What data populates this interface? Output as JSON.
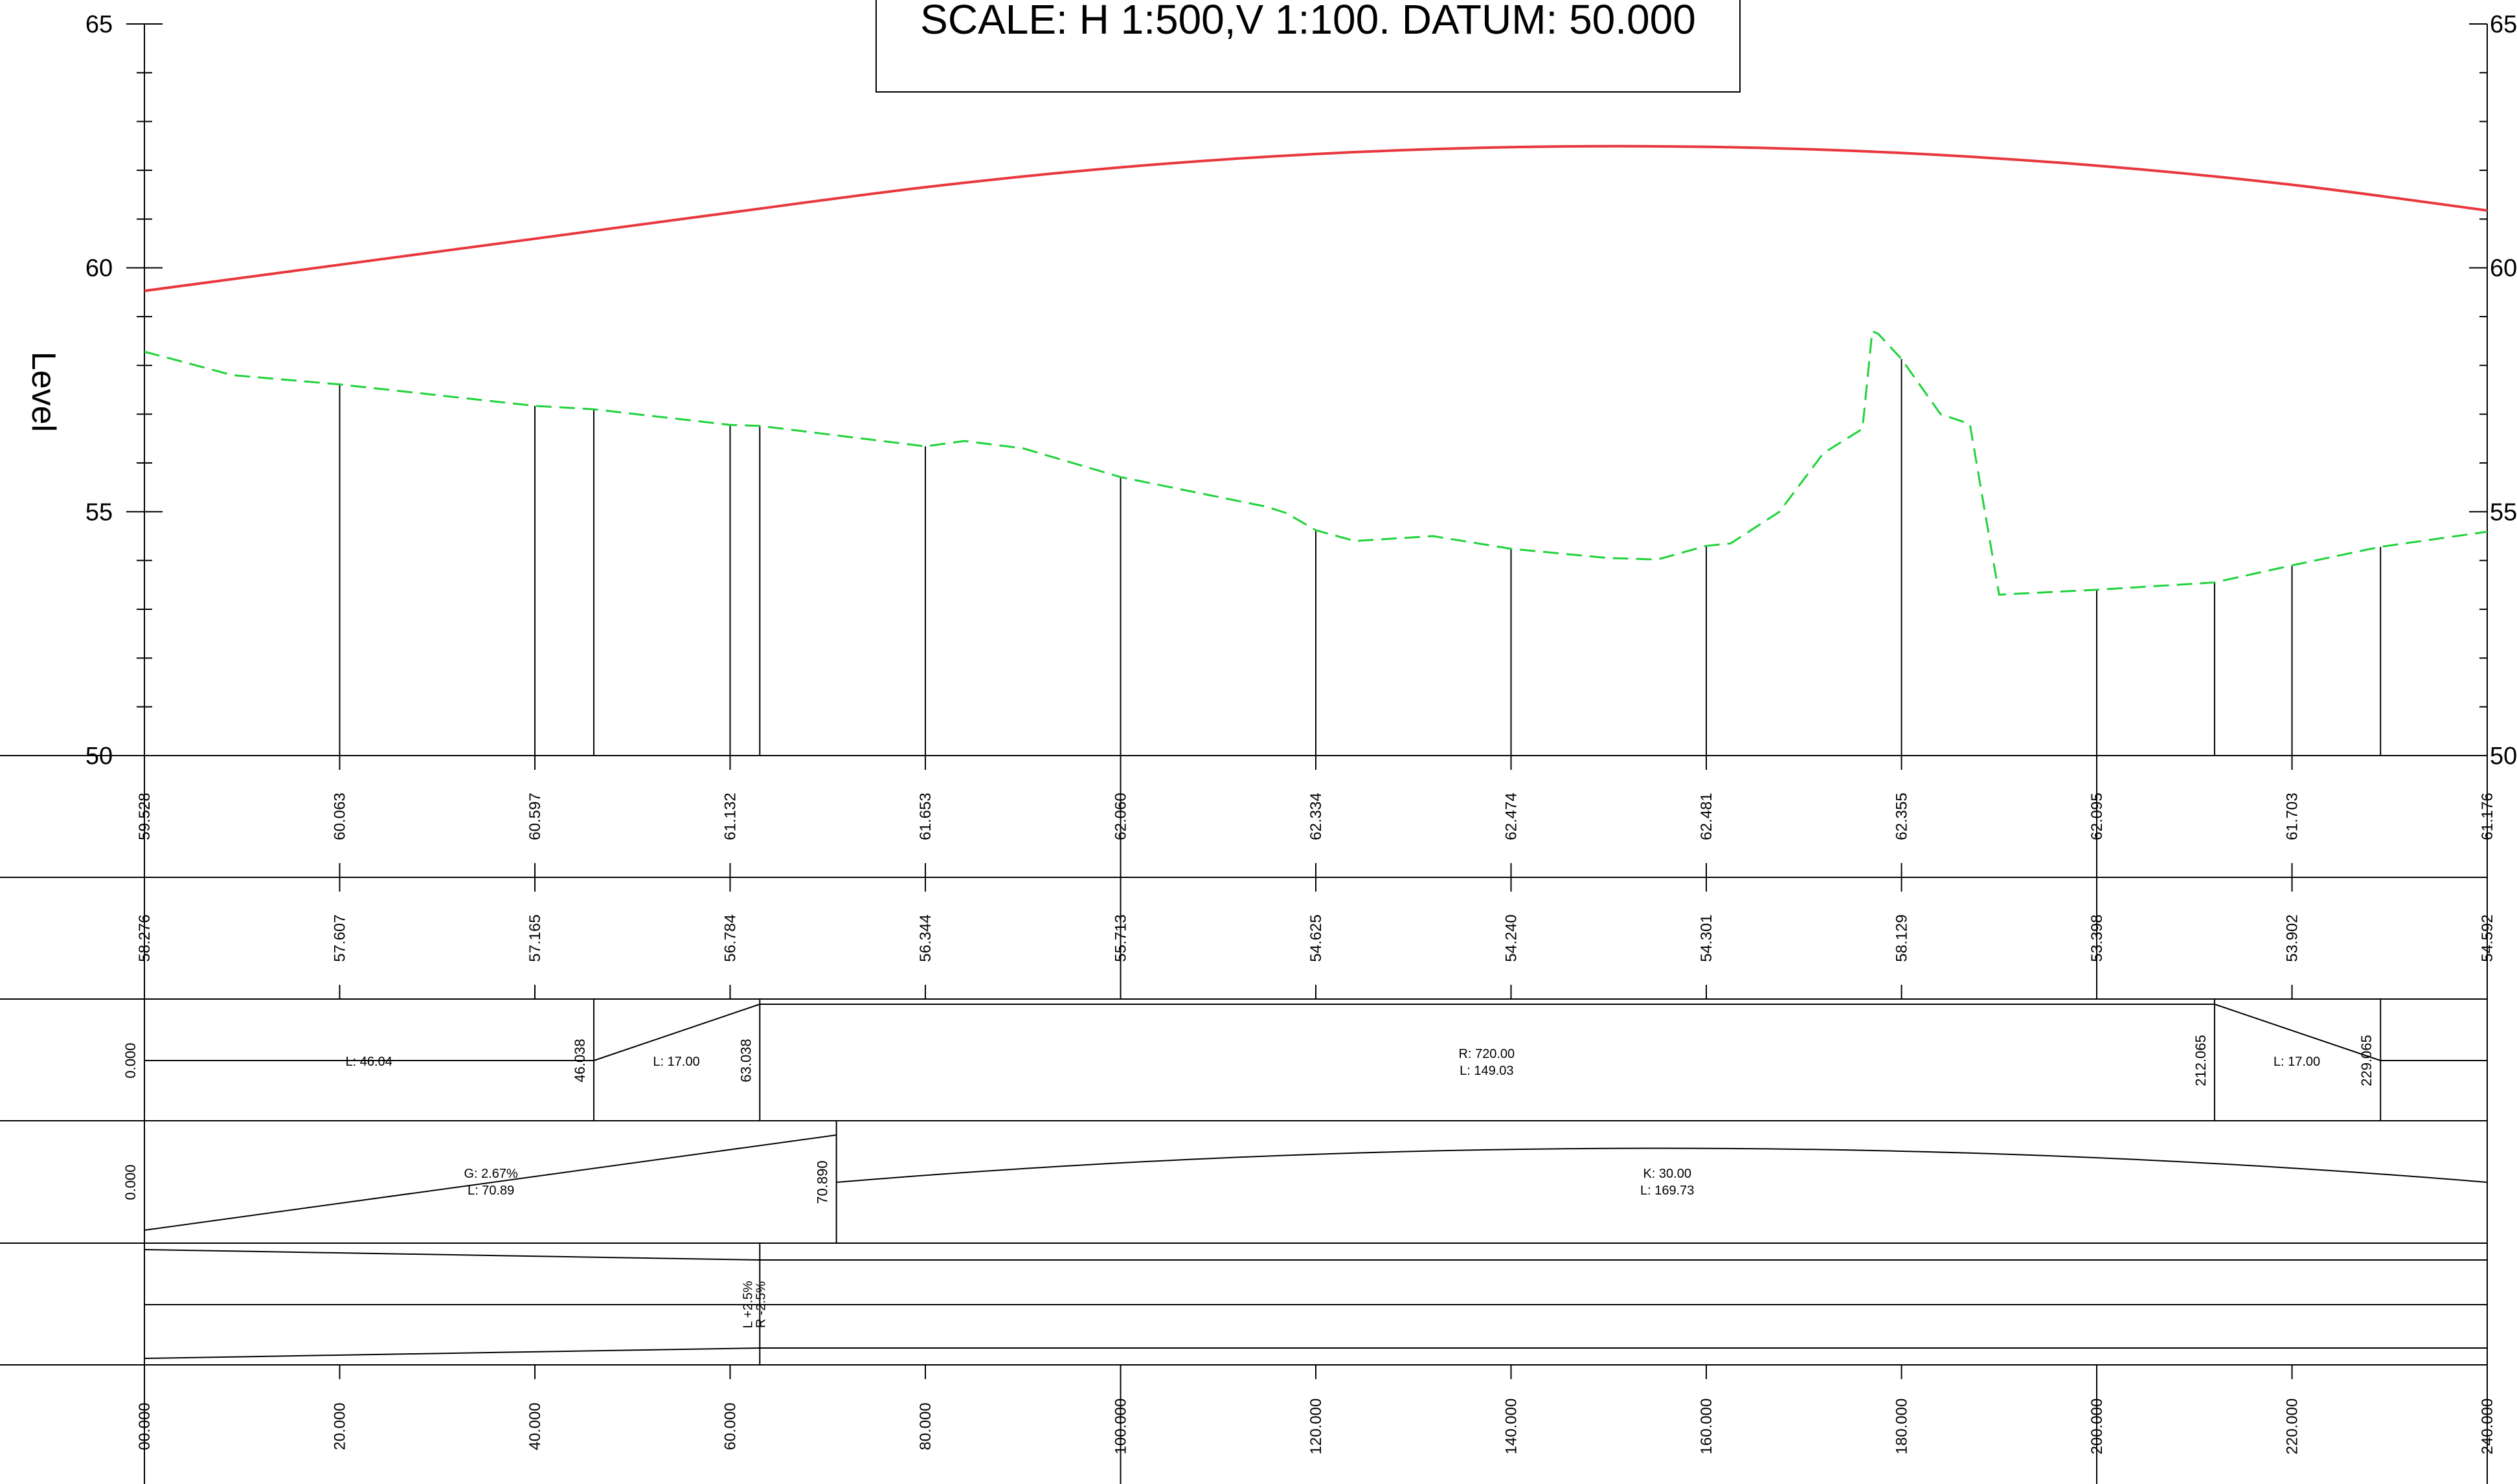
{
  "title": "SCALE: H 1:500,V 1:100. DATUM: 50.000",
  "axis": {
    "label": "Level",
    "ticks": [
      "65",
      "60",
      "55",
      "50"
    ]
  },
  "colors": {
    "design_line": "#e8373d",
    "ground_line": "#1fd33a",
    "ink": "#000000"
  },
  "chart_data": {
    "type": "line",
    "xlabel": "",
    "ylabel": "Level",
    "xlim": [
      0,
      240
    ],
    "ylim": [
      50,
      65
    ],
    "datum": 50.0,
    "grid": false,
    "series": [
      {
        "key": "design",
        "x": [
          0,
          20,
          40,
          60,
          80,
          100,
          120,
          140,
          160,
          180,
          200,
          220,
          240
        ],
        "values": [
          59.528,
          60.063,
          60.597,
          61.132,
          61.653,
          62.06,
          62.334,
          62.474,
          62.481,
          62.355,
          62.095,
          61.703,
          61.176
        ]
      },
      {
        "key": "ground",
        "x": [
          0,
          2.5,
          9,
          20,
          40,
          46.04,
          60,
          63.04,
          80,
          84,
          90,
          100,
          115,
          117,
          120,
          124,
          132,
          140,
          150,
          155,
          160,
          162.5,
          167.5,
          172,
          176,
          177,
          177.6,
          180,
          184,
          187,
          190,
          200,
          212.07,
          220,
          229.07,
          240
        ],
        "values": [
          58.28,
          58.15,
          57.8,
          57.61,
          57.17,
          57.1,
          56.78,
          56.76,
          56.34,
          56.45,
          56.3,
          55.71,
          55.1,
          54.97,
          54.62,
          54.4,
          54.5,
          54.24,
          54.05,
          54.02,
          54.3,
          54.35,
          55.0,
          56.2,
          56.7,
          58.7,
          58.65,
          58.13,
          57.0,
          56.8,
          53.3,
          53.4,
          53.55,
          53.9,
          54.28,
          54.59
        ]
      }
    ],
    "station_drops": [
      20,
      40,
      46.04,
      60,
      63.04,
      80,
      100,
      120,
      140,
      160,
      180,
      200,
      212.07,
      220,
      229.07
    ],
    "bands": {
      "design_levels": {
        "x": [
          0,
          20,
          40,
          60,
          80,
          100,
          120,
          140,
          160,
          180,
          200,
          220,
          240
        ],
        "labels": [
          "59.528",
          "60.063",
          "60.597",
          "61.132",
          "61.653",
          "62.060",
          "62.334",
          "62.474",
          "62.481",
          "62.355",
          "62.095",
          "61.703",
          "61.176"
        ]
      },
      "ground_levels": {
        "x": [
          0,
          20,
          40,
          60,
          80,
          100,
          120,
          140,
          160,
          180,
          200,
          220,
          240
        ],
        "labels": [
          "58.276",
          "57.607",
          "57.165",
          "56.784",
          "56.344",
          "55.713",
          "54.625",
          "54.240",
          "54.301",
          "58.129",
          "53.398",
          "53.902",
          "54.592"
        ]
      },
      "horizontal_alignment": {
        "points": [
          {
            "x": 0,
            "label": "0.000"
          },
          {
            "x": 46.04,
            "label": "46.038"
          },
          {
            "x": 63.04,
            "label": "63.038"
          },
          {
            "x": 212.07,
            "label": "212.065"
          },
          {
            "x": 229.07,
            "label": "229.065"
          }
        ],
        "segments": [
          {
            "x": 23,
            "lines": [
              "L: 46.04"
            ]
          },
          {
            "x": 54.5,
            "lines": [
              "L: 17.00"
            ]
          },
          {
            "x": 137.5,
            "lines": [
              "R: 720.00",
              "L: 149.03"
            ]
          },
          {
            "x": 220.5,
            "lines": [
              "L: 17.00"
            ]
          }
        ]
      },
      "vertical_alignment": {
        "points": [
          {
            "x": 0,
            "label": "0.000"
          },
          {
            "x": 70.89,
            "label": "70.890"
          }
        ],
        "segments": [
          {
            "x": 35.5,
            "lines": [
              "G: 2.67%",
              "L: 70.89"
            ]
          },
          {
            "x": 156,
            "lines": [
              "K: 30.00",
              "L: 169.73"
            ]
          }
        ]
      },
      "superelevation": {
        "x": 63.04,
        "lines": [
          "L +2.5%",
          "R -2.5%"
        ]
      },
      "chainage": {
        "x": [
          0,
          20,
          40,
          60,
          80,
          100,
          120,
          140,
          160,
          180,
          200,
          220,
          240
        ],
        "labels": [
          "00.000",
          "20.000",
          "40.000",
          "60.000",
          "80.000",
          "100.000",
          "120.000",
          "140.000",
          "160.000",
          "180.000",
          "200.000",
          "220.000",
          "240.000"
        ]
      }
    }
  }
}
